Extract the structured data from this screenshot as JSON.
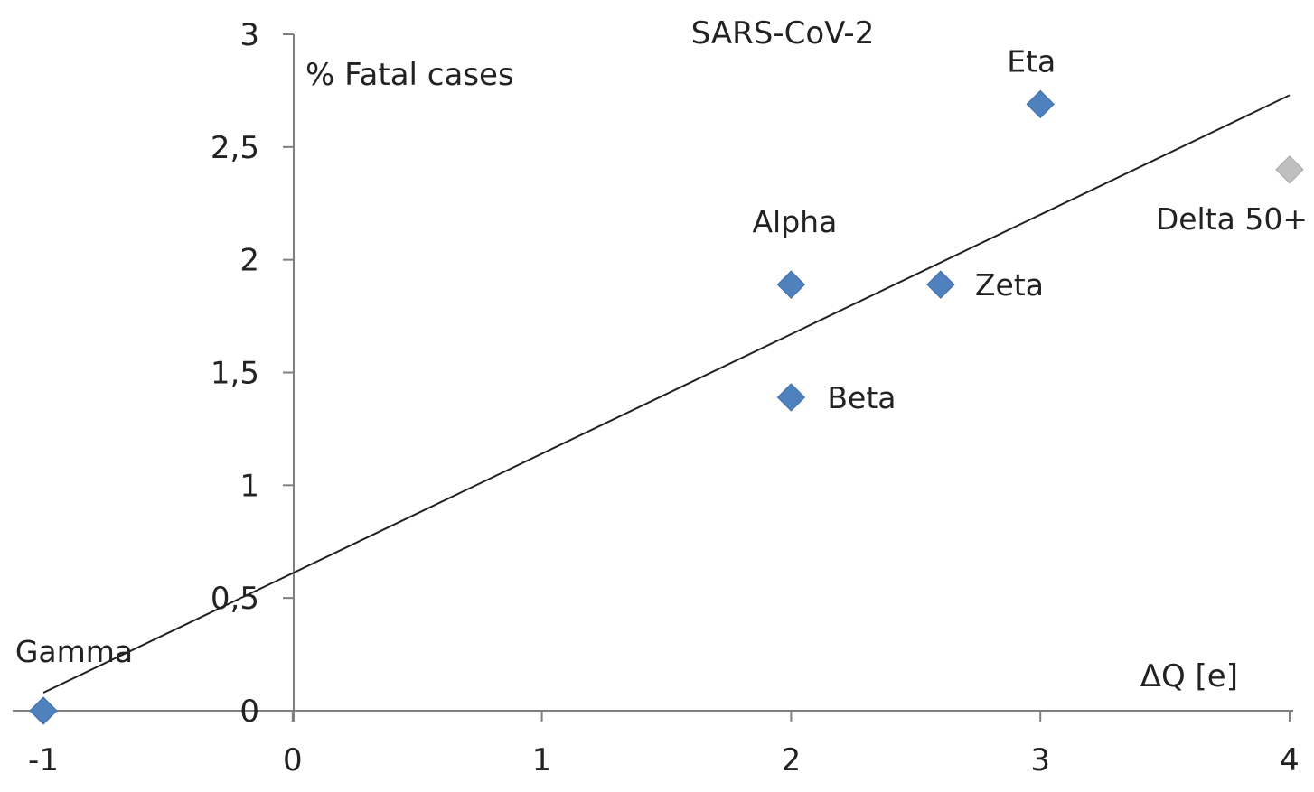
{
  "chart_data": {
    "type": "scatter",
    "title": "SARS-CoV-2",
    "ylabel": "% Fatal cases",
    "xlabel": "ΔQ [e]",
    "xlim": [
      -1,
      4
    ],
    "ylim": [
      0,
      3
    ],
    "x_ticks": [
      -1,
      0,
      1,
      2,
      3,
      4
    ],
    "x_tick_labels": [
      "-1",
      "0",
      "1",
      "2",
      "3",
      "4"
    ],
    "y_ticks": [
      0,
      0.5,
      1,
      1.5,
      2,
      2.5,
      3
    ],
    "y_tick_labels": [
      "0",
      "0,5",
      "1",
      "1,5",
      "2",
      "2,5",
      "3"
    ],
    "grid": false,
    "points": [
      {
        "name": "Gamma",
        "x": -1,
        "y": 0,
        "color": "#4f81bd"
      },
      {
        "name": "Alpha",
        "x": 2,
        "y": 1.89,
        "color": "#4f81bd"
      },
      {
        "name": "Beta",
        "x": 2,
        "y": 1.39,
        "color": "#4f81bd"
      },
      {
        "name": "Zeta",
        "x": 2.6,
        "y": 1.89,
        "color": "#4f81bd"
      },
      {
        "name": "Eta",
        "x": 3,
        "y": 2.69,
        "color": "#4f81bd"
      },
      {
        "name": "Delta 50+",
        "x": 4,
        "y": 2.4,
        "color": "#bfbfbf"
      }
    ],
    "trendline": {
      "x_start": -1,
      "y_start": 0.08,
      "x_end": 4,
      "y_end": 2.73,
      "color": "#222222"
    }
  }
}
